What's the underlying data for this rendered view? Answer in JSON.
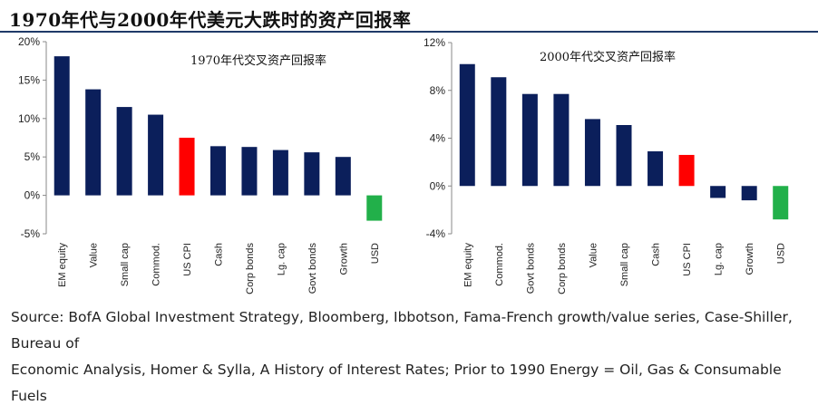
{
  "title": "1970年代与2000年代美元大跌时的资产回报率",
  "source_lines": [
    "Source: BofA Global Investment Strategy, Bloomberg, Ibbotson, Fama-French growth/value series, Case-Shiller,",
    "Bureau of",
    "Economic Analysis, Homer & Sylla, A History of Interest Rates; Prior to 1990 Energy = Oil, Gas & Consumable",
    "Fuels"
  ],
  "colors": {
    "navy": "#0b1f5b",
    "red": "#ff0000",
    "green": "#22b04a",
    "rule": "#1f3a68"
  },
  "chart_data": [
    {
      "type": "bar",
      "title": "1970年代交叉资产回报率",
      "categories": [
        "EM equity",
        "Value",
        "Small cap",
        "Commod.",
        "US CPI",
        "Cash",
        "Corp bonds",
        "Lg. cap",
        "Govt bonds",
        "Growth",
        "USD"
      ],
      "values": [
        18.1,
        13.8,
        11.5,
        10.5,
        7.5,
        6.4,
        6.3,
        5.9,
        5.6,
        5.0,
        -3.3
      ],
      "bar_colors": [
        "navy",
        "navy",
        "navy",
        "navy",
        "red",
        "navy",
        "navy",
        "navy",
        "navy",
        "navy",
        "green"
      ],
      "ylim": [
        -5,
        20
      ],
      "yticks": [
        20,
        15,
        10,
        5,
        0,
        -5
      ],
      "ytick_labels": [
        "20%",
        "15%",
        "10%",
        "5%",
        "0%",
        "-5%"
      ],
      "grid": false
    },
    {
      "type": "bar",
      "title": "2000年代交叉资产回报率",
      "categories": [
        "EM equity",
        "Commod.",
        "Govt bonds",
        "Corp bonds",
        "Value",
        "Small cap",
        "Cash",
        "US CPI",
        "Lg. cap",
        "Growth",
        "USD"
      ],
      "values": [
        10.2,
        9.1,
        7.7,
        7.7,
        5.6,
        5.1,
        2.9,
        2.6,
        -1.0,
        -1.2,
        -2.8
      ],
      "bar_colors": [
        "navy",
        "navy",
        "navy",
        "navy",
        "navy",
        "navy",
        "navy",
        "red",
        "navy",
        "navy",
        "green"
      ],
      "ylim": [
        -4,
        12
      ],
      "yticks": [
        12,
        8,
        4,
        0,
        -4
      ],
      "ytick_labels": [
        "12%",
        "8%",
        "4%",
        "0%",
        "-4%"
      ],
      "grid": false
    }
  ]
}
